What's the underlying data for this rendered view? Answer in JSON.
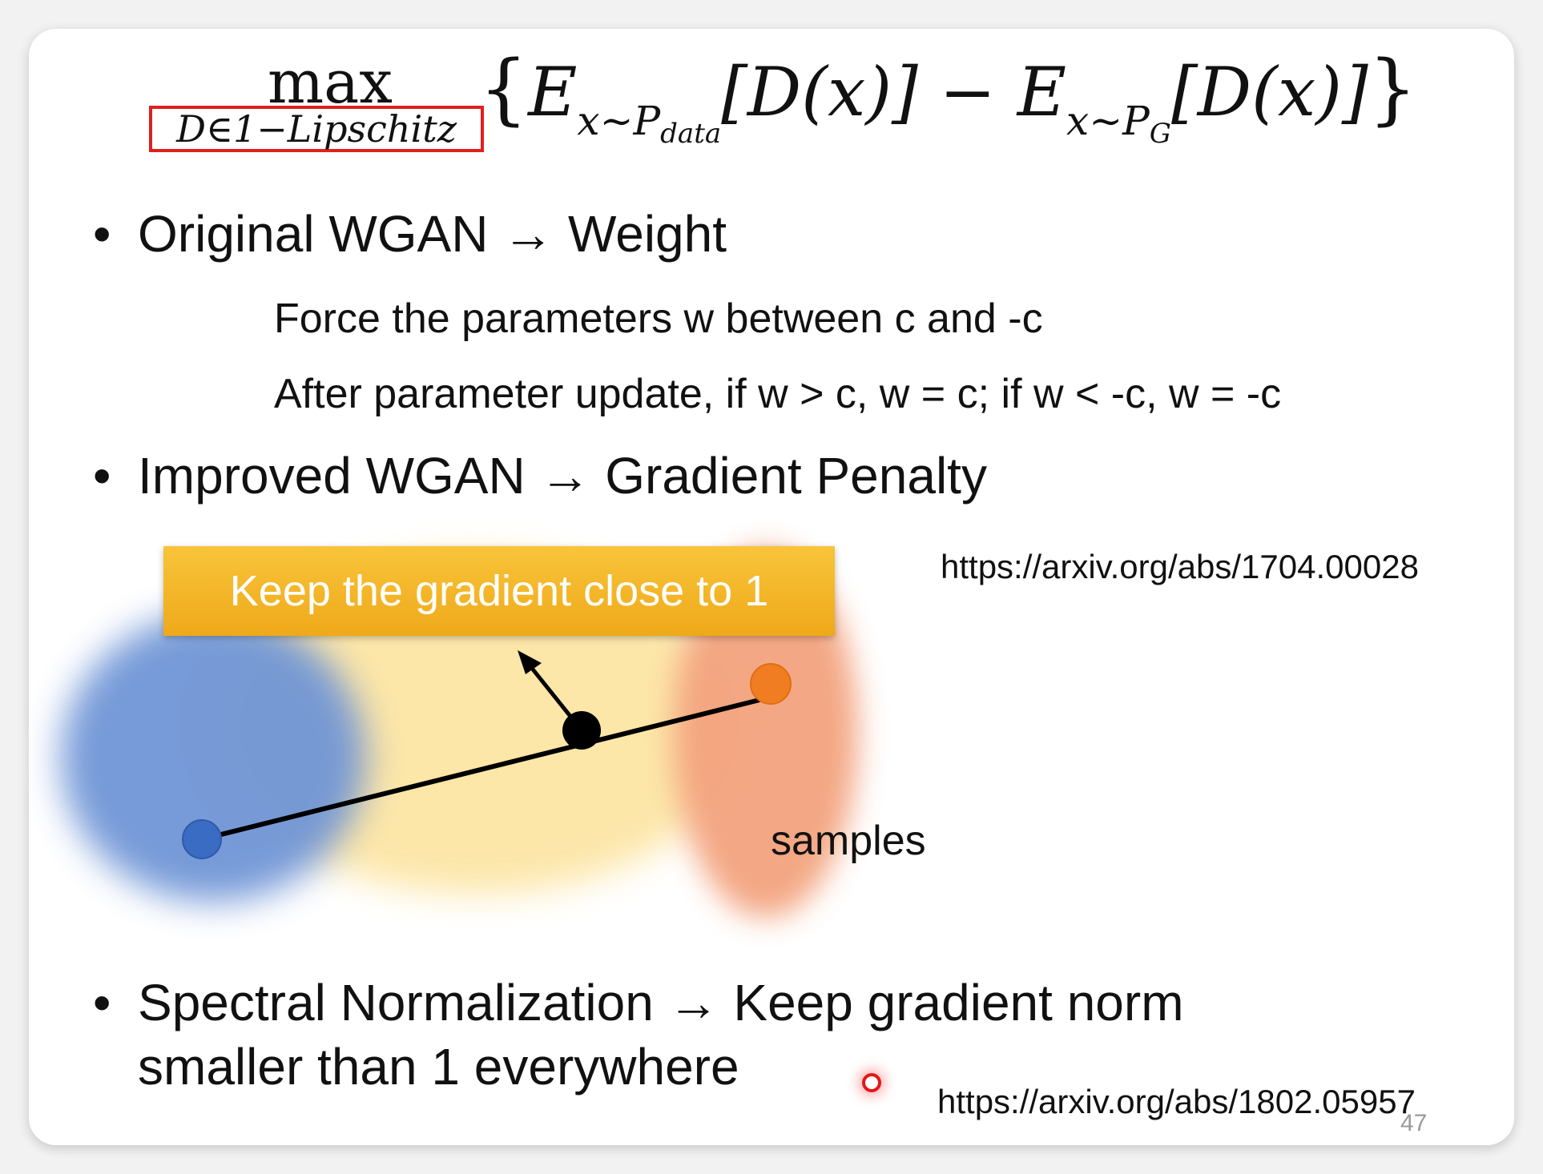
{
  "formula": {
    "max_label": "max",
    "constraint": "D∈1−Lipschitz",
    "brace_open": "{",
    "e1": "E",
    "e1_sub": "x∼P",
    "e1_subsub": "data",
    "d1": "[D(x)] − ",
    "e2": "E",
    "e2_sub": "x∼P",
    "e2_subsub": "G",
    "d2": "[D(x)]",
    "brace_close": "}"
  },
  "bullets": {
    "original": "Original WGAN → Weight",
    "original_sub1": "Force the parameters w between c and -c",
    "original_sub2": "After parameter update, if w > c, w = c; if w < -c, w = -c",
    "improved": "Improved WGAN → Gradient Penalty",
    "spectral_line1": "Spectral Normalization → Keep gradient norm",
    "spectral_line2": "smaller than 1 everywhere",
    "bullet_char": "•"
  },
  "diagram": {
    "callout_text": "Keep the gradient close to 1",
    "samples_label": "samples",
    "colors": {
      "real_region": "#6f95d6",
      "interp_region": "#fce29a",
      "fake_region": "#f3a37e",
      "real_point": "#3a6cc4",
      "fake_point": "#f07d22",
      "sample_point": "#000000",
      "callout": "#f3b12a"
    }
  },
  "urls": {
    "improved_wgan": "https://arxiv.org/abs/1704.00028",
    "spectral_norm": "https://arxiv.org/abs/1802.05957"
  },
  "page_number": "47"
}
